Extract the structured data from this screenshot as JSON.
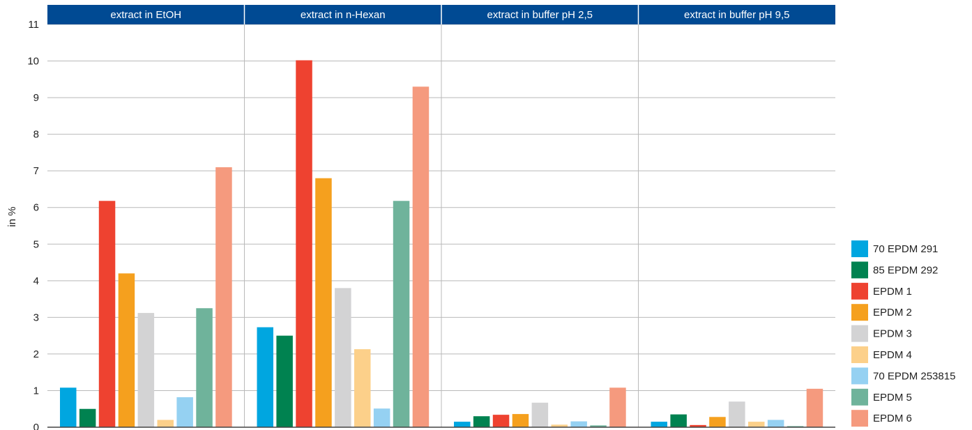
{
  "chart_data": {
    "type": "bar",
    "ylabel": "in %",
    "ylim": [
      0,
      11
    ],
    "yticks": [
      "0",
      "1",
      "2",
      "3",
      "4",
      "5",
      "6",
      "7",
      "8",
      "9",
      "10",
      "11"
    ],
    "grid": true,
    "legend_position": "right",
    "panel_header_color": "#004a93",
    "panels": [
      "extract in EtOH",
      "extract in n-Hexan",
      "extract in buffer pH 2,5",
      "extract in buffer pH 9,5"
    ],
    "series": [
      {
        "name": "70 EPDM 291",
        "color": "#00a6e0",
        "values": [
          1.08,
          2.73,
          0.15,
          0.15
        ]
      },
      {
        "name": "85 EPDM 292",
        "color": "#008250",
        "values": [
          0.5,
          2.5,
          0.3,
          0.35
        ]
      },
      {
        "name": "EPDM 1",
        "color": "#ee4230",
        "values": [
          6.18,
          10.02,
          0.34,
          0.06
        ]
      },
      {
        "name": "EPDM 2",
        "color": "#f5a01e",
        "values": [
          4.2,
          6.8,
          0.36,
          0.28
        ]
      },
      {
        "name": "EPDM 3",
        "color": "#d3d3d4",
        "values": [
          3.12,
          3.8,
          0.67,
          0.7
        ]
      },
      {
        "name": "EPDM 4",
        "color": "#fcd08a",
        "values": [
          0.2,
          2.13,
          0.07,
          0.15
        ]
      },
      {
        "name": "70 EPDM 253815",
        "color": "#95d1f2",
        "values": [
          0.82,
          0.51,
          0.16,
          0.2
        ]
      },
      {
        "name": "EPDM 5",
        "color": "#6fb39b",
        "values": [
          3.25,
          6.18,
          0.05,
          0.03
        ]
      },
      {
        "name": "EPDM 6",
        "color": "#f59a7e",
        "values": [
          7.1,
          9.3,
          1.08,
          1.05
        ]
      }
    ]
  }
}
